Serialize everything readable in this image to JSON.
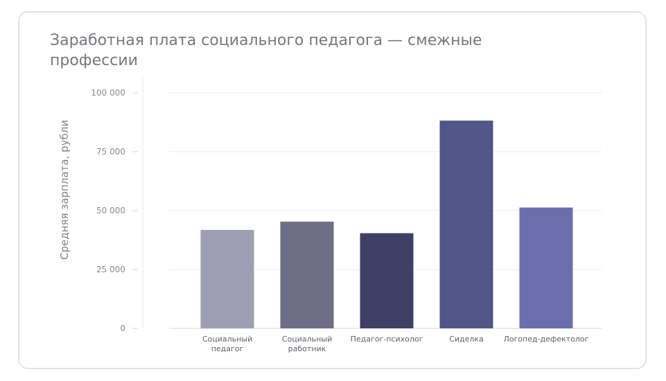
{
  "chart_data": {
    "type": "bar",
    "title": "Заработная плата социального педагога — смежные профессии",
    "ylabel": "Средняя зарплата, рубли",
    "xlabel": "",
    "ylim": [
      0,
      100000
    ],
    "yticks": [
      {
        "value": 0,
        "label": "0"
      },
      {
        "value": 25000,
        "label": "25 000"
      },
      {
        "value": 50000,
        "label": "50 000"
      },
      {
        "value": 75000,
        "label": "75 000"
      },
      {
        "value": 100000,
        "label": "100 000"
      }
    ],
    "grid": true,
    "categories": [
      {
        "lines": [
          "Социальный",
          "педагог"
        ]
      },
      {
        "lines": [
          "Социальный",
          "работник"
        ]
      },
      {
        "lines": [
          "Педагог-психолог"
        ]
      },
      {
        "lines": [
          "Сиделка"
        ]
      },
      {
        "lines": [
          "Логопед-дефектолог"
        ]
      }
    ],
    "values": [
      41800,
      45300,
      40400,
      88200,
      51300
    ],
    "colors": [
      "#9e9eb3",
      "#6e6e88",
      "#3e4066",
      "#515689",
      "#6a6fab"
    ]
  }
}
